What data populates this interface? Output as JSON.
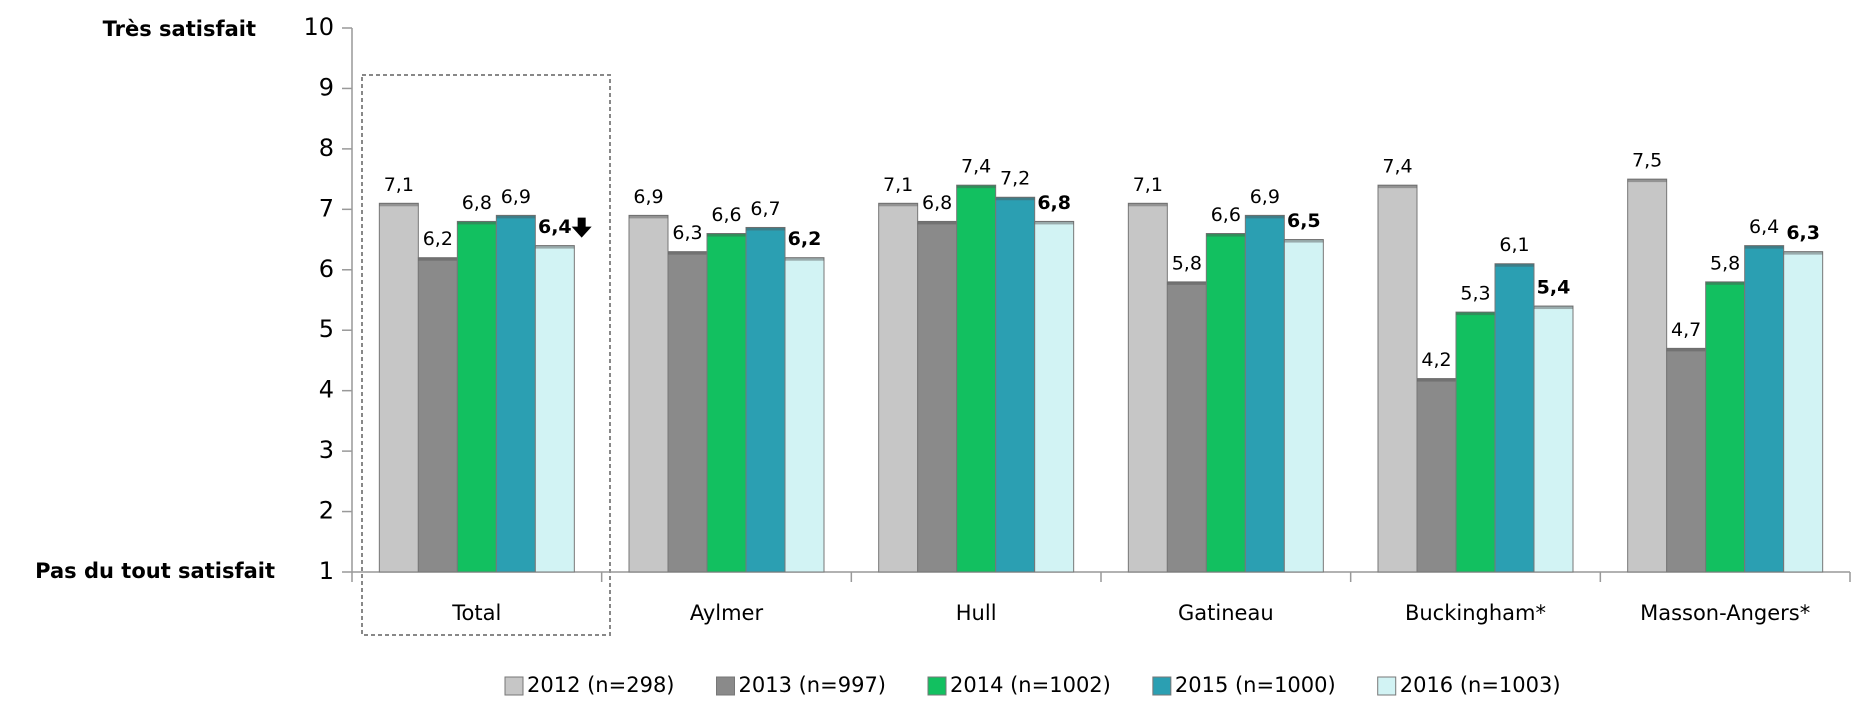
{
  "chart_data": {
    "type": "bar",
    "top_label": "Très satisfait",
    "bottom_label": "Pas du tout satisfait",
    "categories": [
      "Total",
      "Aylmer",
      "Hull",
      "Gatineau",
      "Buckingham*",
      "Masson-Angers*"
    ],
    "ylim": [
      1,
      10
    ],
    "yticks": [
      1,
      2,
      3,
      4,
      5,
      6,
      7,
      8,
      9,
      10
    ],
    "series": [
      {
        "name": "2012 (n=298)",
        "color": "#c6c6c6",
        "values": [
          7.1,
          6.9,
          7.1,
          7.1,
          7.4,
          7.5
        ],
        "value_labels": [
          "7,1",
          "6,9",
          "7,1",
          "7,1",
          "7,4",
          "7,5"
        ],
        "label_colors": [
          "#000000",
          "#000000",
          "#000000",
          "#000000",
          "#8c8c8c",
          "#8c8c8c"
        ]
      },
      {
        "name": "2013 (n=997)",
        "color": "#8a8a8a",
        "values": [
          6.2,
          6.3,
          6.8,
          5.8,
          4.2,
          4.7
        ],
        "value_labels": [
          "6,2",
          "6,3",
          "6,8",
          "5,8",
          "4,2",
          "4,7"
        ]
      },
      {
        "name": "2014 (n=1002)",
        "color": "#12c060",
        "values": [
          6.8,
          6.6,
          7.4,
          6.6,
          5.3,
          5.8
        ],
        "value_labels": [
          "6,8",
          "6,6",
          "7,4",
          "6,6",
          "5,3",
          "5,8"
        ]
      },
      {
        "name": "2015 (n=1000)",
        "color": "#2b9fb2",
        "values": [
          6.9,
          6.7,
          7.2,
          6.9,
          6.1,
          6.4
        ],
        "value_labels": [
          "6,9",
          "6,7",
          "7,2",
          "6,9",
          "6,1",
          "6,4"
        ]
      },
      {
        "name": "2016 (n=1003)",
        "color": "#d2f3f4",
        "values": [
          6.4,
          6.2,
          6.8,
          6.5,
          5.4,
          6.3
        ],
        "value_labels": [
          "6,4",
          "6,2",
          "6,8",
          "6,5",
          "5,4",
          "6,3"
        ],
        "label_bold": true,
        "label_colors": [
          "#000000",
          "#000000",
          "#e8151b",
          "#000000",
          "#1f6fc0",
          "#000000"
        ]
      }
    ]
  }
}
